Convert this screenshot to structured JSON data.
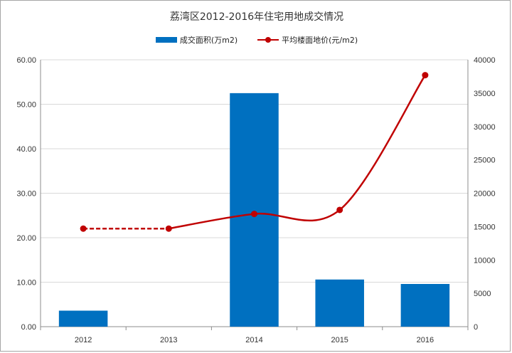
{
  "chart_data": {
    "type": "bar",
    "title": "荔湾区2012-2016年住宅用地成交情况",
    "categories": [
      "2012",
      "2013",
      "2014",
      "2015",
      "2016"
    ],
    "series": [
      {
        "name": "成交面积(万m2)",
        "type": "bar",
        "axis": "left",
        "color": "#0070c0",
        "values": [
          3.6,
          null,
          52.5,
          10.6,
          9.6
        ]
      },
      {
        "name": "平均楼面地价(元/m2)",
        "type": "line",
        "axis": "right",
        "color": "#c00000",
        "values": [
          14700,
          14700,
          16900,
          17500,
          37700
        ]
      }
    ],
    "y_left": {
      "ylim": [
        0,
        60
      ],
      "ticks": [
        "0.00",
        "10.00",
        "20.00",
        "30.00",
        "40.00",
        "50.00",
        "60.00"
      ]
    },
    "y_right": {
      "ylim": [
        0,
        40000
      ],
      "ticks": [
        "0",
        "5000",
        "10000",
        "15000",
        "20000",
        "25000",
        "30000",
        "35000",
        "40000"
      ]
    },
    "grid": true,
    "legend_position": "top"
  }
}
